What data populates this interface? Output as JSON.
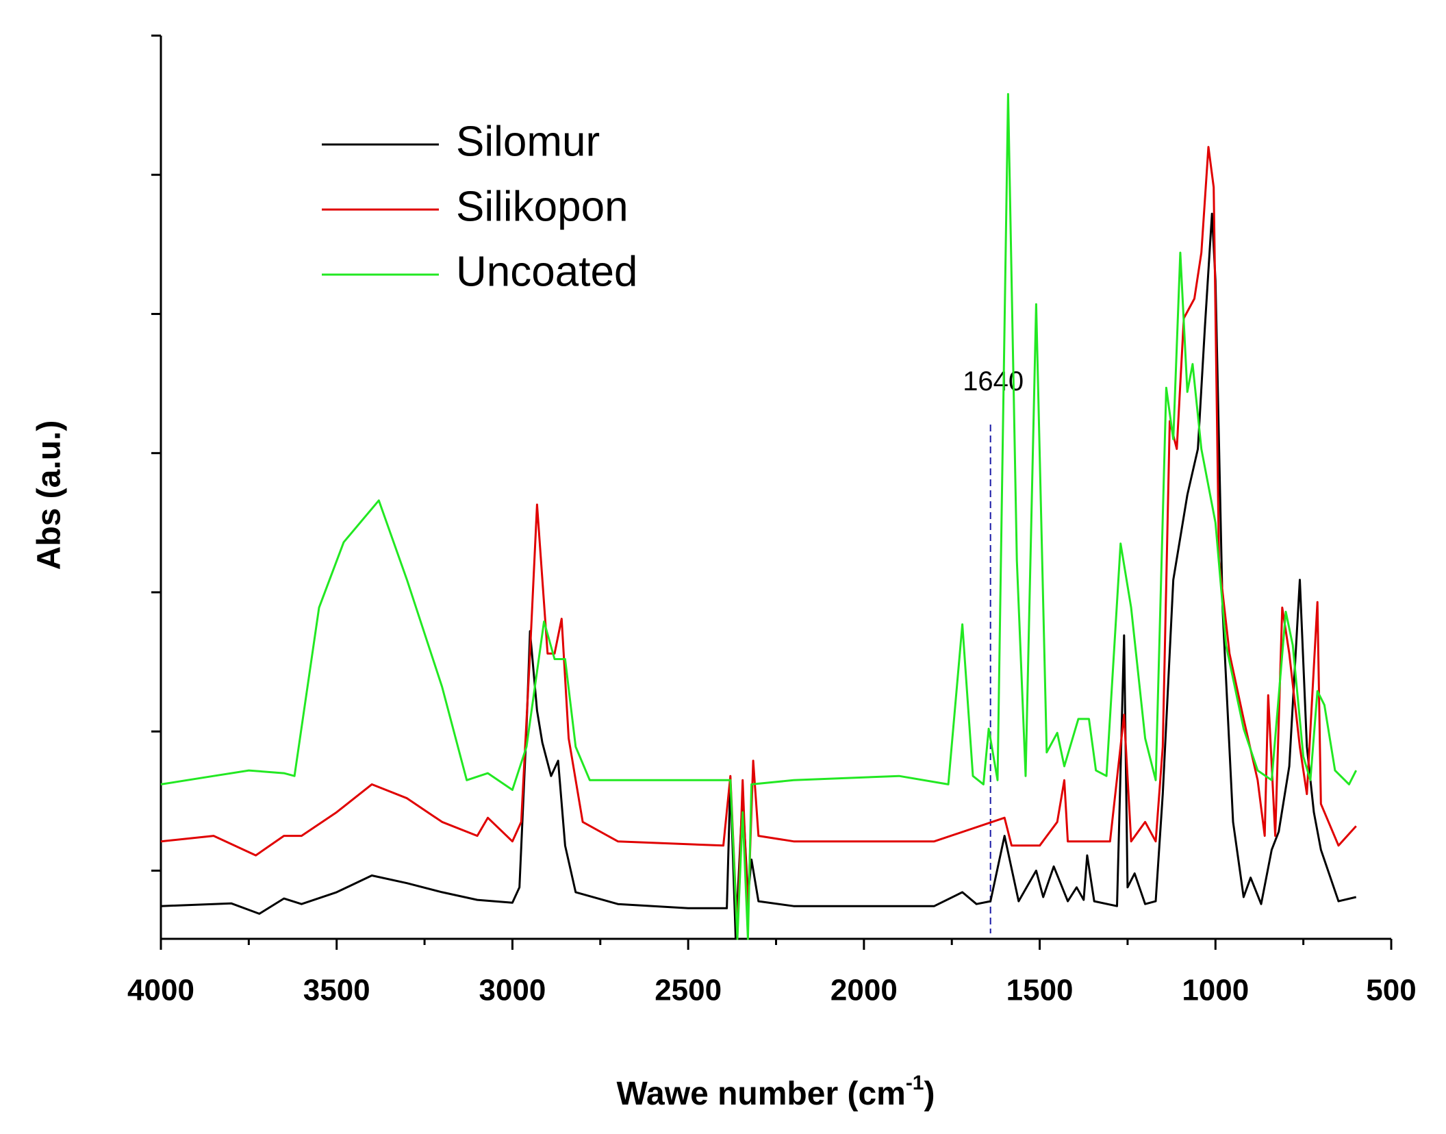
{
  "chart_data": {
    "type": "line",
    "x_label": {
      "text": "Wawe number (cm",
      "superscript": "-1",
      "suffix": ")"
    },
    "y_label": "Abs (a.u.)",
    "xlim": [
      4000,
      500
    ],
    "xticks": [
      4000,
      3500,
      3000,
      2500,
      2000,
      1500,
      1000,
      500
    ],
    "xticks_minor": [
      3750,
      3250,
      2750,
      2250,
      1750,
      1250,
      750
    ],
    "ylim": [
      -0.49,
      6
    ],
    "yticks": [
      0,
      1,
      2,
      3,
      4,
      5,
      6
    ],
    "legend": "upper left",
    "annotations": [
      {
        "text": "1640",
        "x": 1640,
        "color": "#1a1aa6"
      }
    ],
    "series": [
      {
        "name": "Silomur",
        "color": "#000000",
        "x": [
          4000,
          3800,
          3720,
          3650,
          3600,
          3500,
          3400,
          3300,
          3200,
          3100,
          3000,
          2980,
          2960,
          2950,
          2930,
          2915,
          2890,
          2870,
          2850,
          2820,
          2700,
          2500,
          2390,
          2380,
          2365,
          2345,
          2330,
          2320,
          2300,
          2200,
          1800,
          1720,
          1680,
          1640,
          1600,
          1560,
          1510,
          1490,
          1460,
          1420,
          1395,
          1375,
          1365,
          1345,
          1280,
          1260,
          1250,
          1230,
          1200,
          1170,
          1150,
          1120,
          1080,
          1050,
          1030,
          1010,
          1000,
          980,
          950,
          920,
          900,
          870,
          840,
          820,
          790,
          760,
          740,
          720,
          700,
          650,
          600
        ],
        "values": [
          -0.255,
          -0.235,
          -0.31,
          -0.2,
          -0.24,
          -0.155,
          -0.035,
          -0.09,
          -0.155,
          -0.21,
          -0.23,
          -0.12,
          1.02,
          1.72,
          1.15,
          0.92,
          0.68,
          0.79,
          0.18,
          -0.155,
          -0.24,
          -0.27,
          -0.27,
          0.65,
          -0.49,
          0.55,
          -0.19,
          0.08,
          -0.22,
          -0.255,
          -0.255,
          -0.155,
          -0.24,
          -0.22,
          0.25,
          -0.22,
          0,
          -0.19,
          0.03,
          -0.22,
          -0.12,
          -0.21,
          0.11,
          -0.22,
          -0.255,
          1.69,
          -0.12,
          -0.02,
          -0.24,
          -0.22,
          0.55,
          2.09,
          2.7,
          3.03,
          3.91,
          4.72,
          4.24,
          1.89,
          0.35,
          -0.19,
          -0.05,
          -0.24,
          0.15,
          0.28,
          0.75,
          2.09,
          0.89,
          0.42,
          0.15,
          -0.22,
          -0.19
        ]
      },
      {
        "name": "Silikopon",
        "color": "#e00000",
        "x": [
          4000,
          3850,
          3730,
          3650,
          3600,
          3500,
          3400,
          3300,
          3200,
          3100,
          3070,
          3000,
          2975,
          2950,
          2930,
          2900,
          2880,
          2860,
          2840,
          2800,
          2700,
          2400,
          2380,
          2360,
          2345,
          2330,
          2315,
          2300,
          2200,
          1800,
          1600,
          1580,
          1500,
          1450,
          1430,
          1420,
          1300,
          1260,
          1240,
          1200,
          1170,
          1150,
          1130,
          1110,
          1090,
          1060,
          1040,
          1020,
          1005,
          990,
          960,
          920,
          880,
          860,
          850,
          830,
          810,
          790,
          760,
          740,
          710,
          700,
          650,
          600
        ],
        "values": [
          0.21,
          0.25,
          0.11,
          0.25,
          0.25,
          0.42,
          0.62,
          0.52,
          0.35,
          0.25,
          0.38,
          0.21,
          0.35,
          1.56,
          2.63,
          1.56,
          1.56,
          1.81,
          0.95,
          0.35,
          0.21,
          0.18,
          0.68,
          -0.46,
          0.65,
          -0.32,
          0.79,
          0.25,
          0.21,
          0.21,
          0.38,
          0.18,
          0.18,
          0.35,
          0.65,
          0.21,
          0.21,
          1.12,
          0.21,
          0.35,
          0.21,
          0.89,
          3.23,
          3.03,
          3.97,
          4.11,
          4.44,
          5.2,
          4.91,
          2.23,
          1.56,
          1.09,
          0.65,
          0.25,
          1.26,
          0.25,
          1.89,
          1.56,
          0.89,
          0.55,
          1.93,
          0.48,
          0.18,
          0.32
        ]
      },
      {
        "name": "Uncoated",
        "color": "#22e822",
        "x": [
          4000,
          3850,
          3750,
          3650,
          3620,
          3550,
          3480,
          3380,
          3300,
          3200,
          3130,
          3070,
          3000,
          2960,
          2910,
          2880,
          2850,
          2820,
          2780,
          2600,
          2400,
          2380,
          2360,
          2345,
          2330,
          2320,
          2200,
          1900,
          1760,
          1720,
          1690,
          1660,
          1645,
          1620,
          1590,
          1565,
          1540,
          1510,
          1480,
          1450,
          1430,
          1390,
          1360,
          1340,
          1310,
          1270,
          1240,
          1200,
          1170,
          1140,
          1120,
          1100,
          1080,
          1065,
          1040,
          1000,
          970,
          920,
          880,
          840,
          800,
          780,
          750,
          730,
          710,
          690,
          660,
          620,
          600
        ],
        "values": [
          0.62,
          0.68,
          0.72,
          0.7,
          0.68,
          1.89,
          2.36,
          2.66,
          2.09,
          1.32,
          0.65,
          0.7,
          0.58,
          0.89,
          1.79,
          1.52,
          1.52,
          0.89,
          0.65,
          0.65,
          0.65,
          0.65,
          -0.49,
          0.42,
          -0.49,
          0.62,
          0.65,
          0.68,
          0.62,
          1.77,
          0.68,
          0.62,
          1.02,
          0.65,
          5.58,
          2.23,
          0.68,
          4.07,
          0.85,
          0.99,
          0.75,
          1.09,
          1.09,
          0.72,
          0.68,
          2.35,
          1.89,
          0.95,
          0.65,
          3.47,
          3.1,
          4.44,
          3.44,
          3.64,
          3.03,
          2.5,
          1.62,
          1.02,
          0.72,
          0.65,
          1.86,
          1.62,
          0.82,
          0.65,
          1.29,
          1.19,
          0.72,
          0.62,
          0.72
        ]
      }
    ]
  }
}
